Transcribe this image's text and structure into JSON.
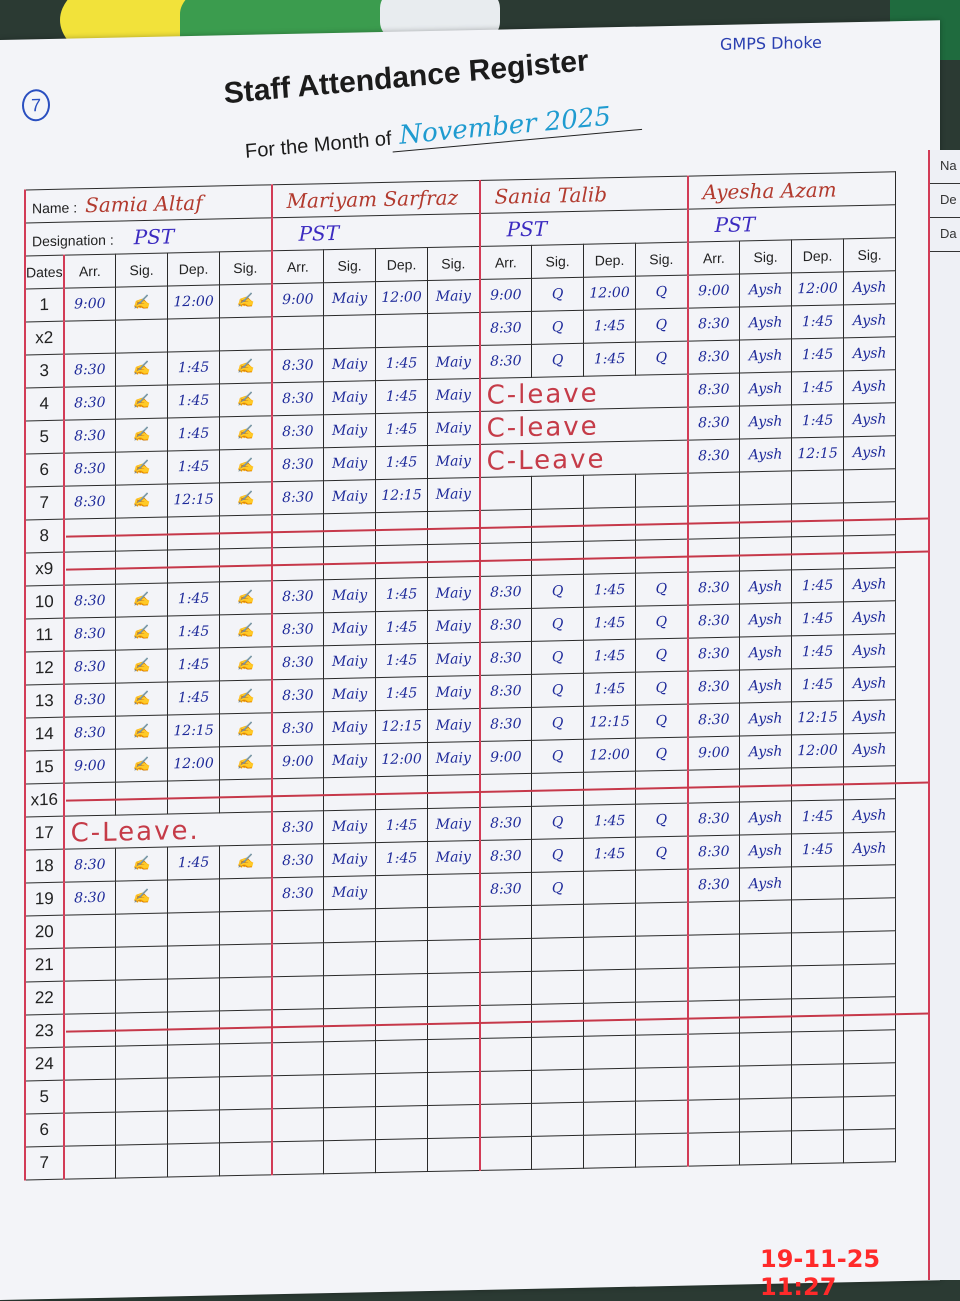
{
  "header": {
    "page_number": "7",
    "title": "Staff Attendance Register",
    "month_label": "For the Month of",
    "month_value": "November 2025",
    "school_note": "GMPS Dhoke"
  },
  "labels": {
    "name": "Name :",
    "designation": "Designation :",
    "dates": "Dates",
    "arr": "Arr.",
    "sig": "Sig.",
    "dep": "Dep."
  },
  "next_page_labels": [
    "Na",
    "De",
    "Da"
  ],
  "staff": [
    {
      "name": "Samia Altaf",
      "designation": "PST",
      "signature": "✍"
    },
    {
      "name": "Mariyam Sarfraz",
      "designation": "PST",
      "signature": "Maiy"
    },
    {
      "name": "Sania Talib",
      "designation": "PST",
      "signature": "Q"
    },
    {
      "name": "Ayesha Azam",
      "designation": "PST",
      "signature": "Aysh"
    }
  ],
  "rows": [
    {
      "date": "1",
      "entries": [
        [
          "9:00",
          "12:00"
        ],
        [
          "9:00",
          "12:00"
        ],
        [
          "9:00",
          "12:00"
        ],
        [
          "9:00",
          "12:00"
        ]
      ]
    },
    {
      "date": "x2",
      "entries": [
        null,
        null,
        [
          "8:30",
          "1:45"
        ],
        [
          "8:30",
          "1:45"
        ]
      ]
    },
    {
      "date": "3",
      "entries": [
        [
          "8:30",
          "1:45"
        ],
        [
          "8:30",
          "1:45"
        ],
        [
          "8:30",
          "1:45"
        ],
        [
          "8:30",
          "1:45"
        ]
      ]
    },
    {
      "date": "4",
      "entries": [
        [
          "8:30",
          "1:45"
        ],
        [
          "8:30",
          "1:45"
        ],
        "C-leave",
        [
          "8:30",
          "1:45"
        ]
      ]
    },
    {
      "date": "5",
      "entries": [
        [
          "8:30",
          "1:45"
        ],
        [
          "8:30",
          "1:45"
        ],
        "C-leave",
        [
          "8:30",
          "1:45"
        ]
      ]
    },
    {
      "date": "6",
      "entries": [
        [
          "8:30",
          "1:45"
        ],
        [
          "8:30",
          "1:45"
        ],
        "C-Leave",
        [
          "8:30",
          "12:15"
        ]
      ]
    },
    {
      "date": "7",
      "entries": [
        [
          "8:30",
          "12:15"
        ],
        [
          "8:30",
          "12:15"
        ],
        null,
        null
      ],
      "holiday_after": true
    },
    {
      "date": "8",
      "entries": [
        null,
        null,
        null,
        null
      ],
      "holiday": true
    },
    {
      "date": "x9",
      "entries": [
        null,
        null,
        null,
        null
      ],
      "holiday": true
    },
    {
      "date": "10",
      "entries": [
        [
          "8:30",
          "1:45"
        ],
        [
          "8:30",
          "1:45"
        ],
        [
          "8:30",
          "1:45"
        ],
        [
          "8:30",
          "1:45"
        ]
      ]
    },
    {
      "date": "11",
      "entries": [
        [
          "8:30",
          "1:45"
        ],
        [
          "8:30",
          "1:45"
        ],
        [
          "8:30",
          "1:45"
        ],
        [
          "8:30",
          "1:45"
        ]
      ]
    },
    {
      "date": "12",
      "entries": [
        [
          "8:30",
          "1:45"
        ],
        [
          "8:30",
          "1:45"
        ],
        [
          "8:30",
          "1:45"
        ],
        [
          "8:30",
          "1:45"
        ]
      ]
    },
    {
      "date": "13",
      "entries": [
        [
          "8:30",
          "1:45"
        ],
        [
          "8:30",
          "1:45"
        ],
        [
          "8:30",
          "1:45"
        ],
        [
          "8:30",
          "1:45"
        ]
      ]
    },
    {
      "date": "14",
      "entries": [
        [
          "8:30",
          "12:15"
        ],
        [
          "8:30",
          "12:15"
        ],
        [
          "8:30",
          "12:15"
        ],
        [
          "8:30",
          "12:15"
        ]
      ]
    },
    {
      "date": "15",
      "entries": [
        [
          "9:00",
          "12:00"
        ],
        [
          "9:00",
          "12:00"
        ],
        [
          "9:00",
          "12:00"
        ],
        [
          "9:00",
          "12:00"
        ]
      ]
    },
    {
      "date": "x16",
      "entries": [
        null,
        null,
        null,
        null
      ],
      "holiday": true
    },
    {
      "date": "17",
      "entries": [
        "C-Leave.",
        [
          "8:30",
          "1:45"
        ],
        [
          "8:30",
          "1:45"
        ],
        [
          "8:30",
          "1:45"
        ]
      ]
    },
    {
      "date": "18",
      "entries": [
        [
          "8:30",
          "1:45"
        ],
        [
          "8:30",
          "1:45"
        ],
        [
          "8:30",
          "1:45"
        ],
        [
          "8:30",
          "1:45"
        ]
      ]
    },
    {
      "date": "19",
      "entries": [
        [
          "8:30",
          ""
        ],
        [
          "8:30",
          ""
        ],
        [
          "8:30",
          ""
        ],
        [
          "8:30",
          ""
        ]
      ]
    },
    {
      "date": "20",
      "entries": [
        null,
        null,
        null,
        null
      ]
    },
    {
      "date": "21",
      "entries": [
        null,
        null,
        null,
        null
      ]
    },
    {
      "date": "22",
      "entries": [
        null,
        null,
        null,
        null
      ]
    },
    {
      "date": "23",
      "entries": [
        null,
        null,
        null,
        null
      ],
      "holiday": true
    },
    {
      "date": "24",
      "entries": [
        null,
        null,
        null,
        null
      ]
    },
    {
      "date": "5",
      "entries": [
        null,
        null,
        null,
        null
      ]
    },
    {
      "date": "6",
      "entries": [
        null,
        null,
        null,
        null
      ]
    },
    {
      "date": "7",
      "entries": [
        null,
        null,
        null,
        null
      ]
    }
  ],
  "timestamp": "19-11-25 11:27",
  "colors": {
    "ink_blue": "#1e2a9a",
    "rule_red": "#d23b56",
    "name_red": "#b23a2e",
    "leave_red": "#c53b48",
    "timestamp": "#ff2a2a"
  }
}
